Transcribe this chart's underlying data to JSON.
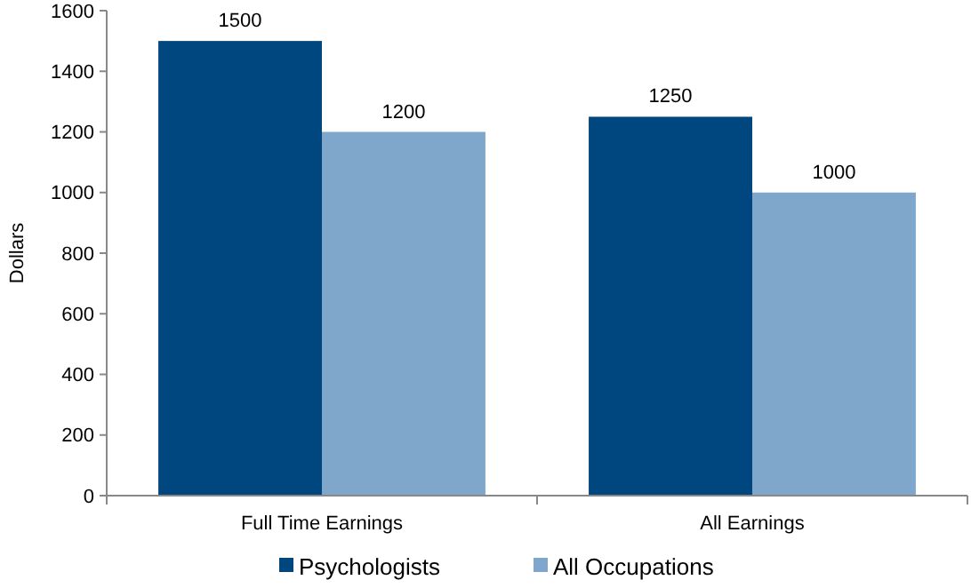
{
  "chart_data": {
    "type": "bar",
    "ylabel": "Dollars",
    "categories": [
      "Full Time Earnings",
      "All Earnings"
    ],
    "series": [
      {
        "name": "Psychologists",
        "color": "#00467f",
        "values": [
          1500,
          1250
        ]
      },
      {
        "name": "All Occupations",
        "color": "#7fa7cc",
        "values": [
          1200,
          1000
        ]
      }
    ],
    "ylim": [
      0,
      1600
    ],
    "yticks": [
      0,
      200,
      400,
      600,
      800,
      1000,
      1200,
      1400,
      1600
    ],
    "data_labels": true,
    "legend": "bottom",
    "grid": false
  }
}
